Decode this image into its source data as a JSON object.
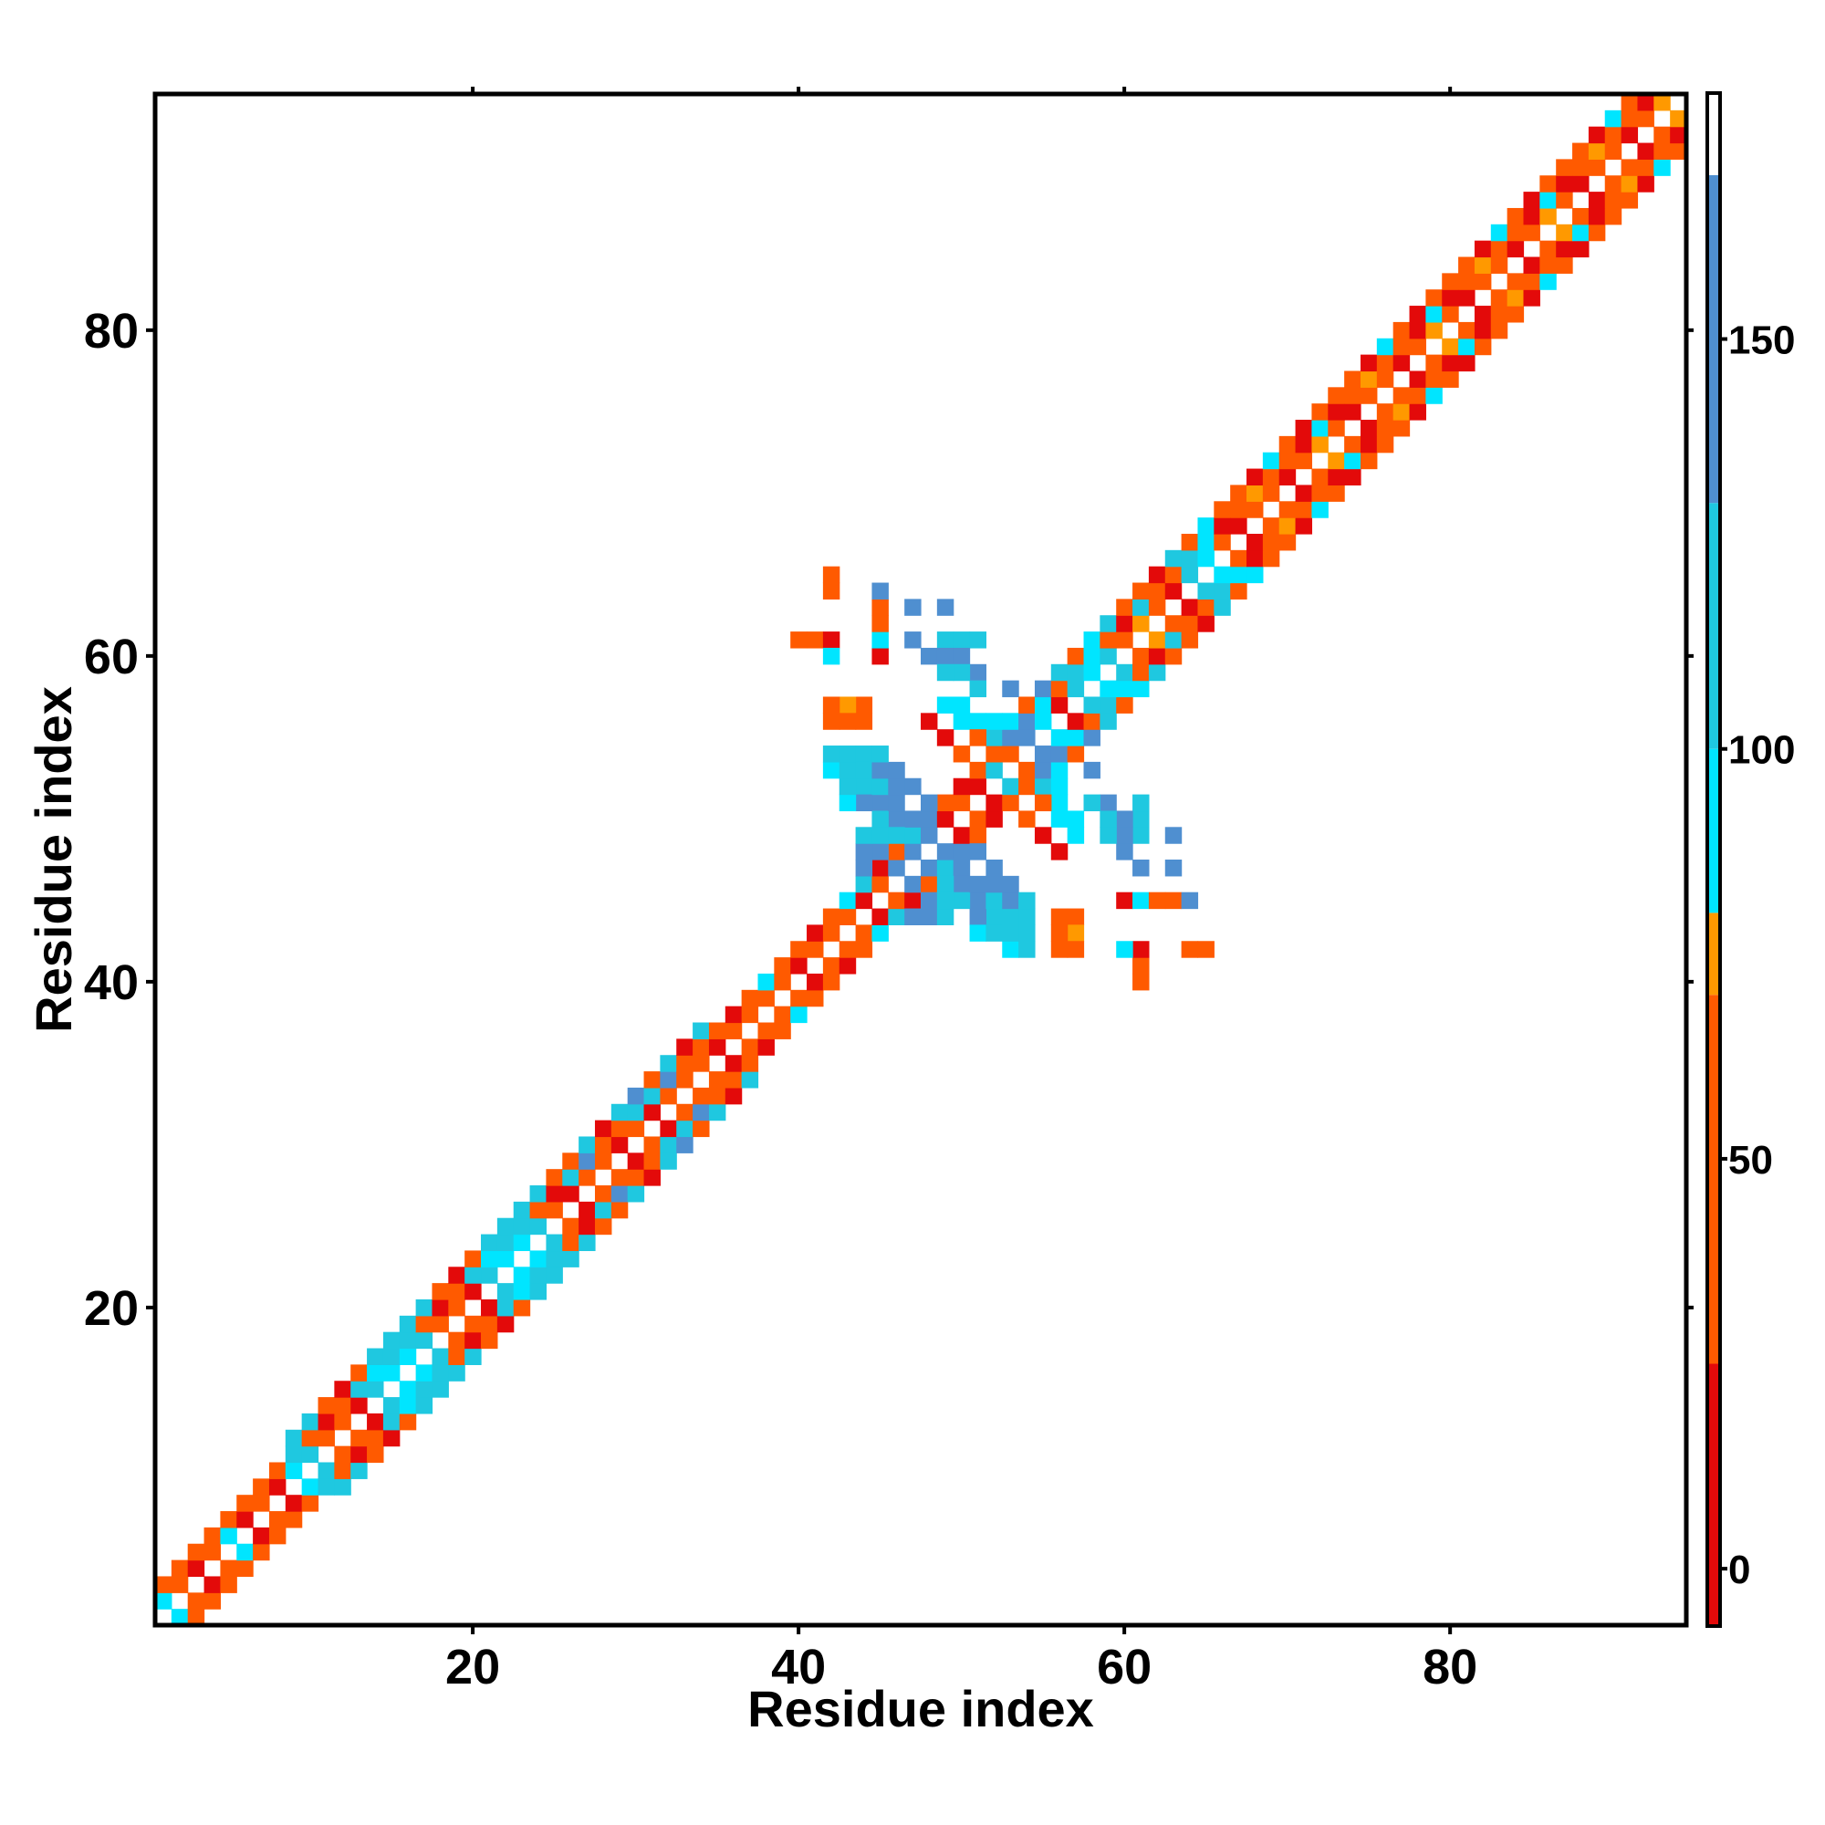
{
  "chart_data": {
    "type": "heatmap",
    "xlabel": "Residue index",
    "ylabel": "Residue index",
    "xlim": [
      1,
      94
    ],
    "ylim": [
      1,
      94
    ],
    "x_ticks": [
      20,
      40,
      60,
      80
    ],
    "y_ticks": [
      20,
      40,
      60,
      80
    ],
    "colorbar": {
      "range": [
        -7,
        180
      ],
      "ticks": [
        0,
        50,
        100,
        150
      ],
      "bands": [
        {
          "from": -7,
          "to": 25,
          "color": "#e30a0a"
        },
        {
          "from": 25,
          "to": 70,
          "color": "#ff5a00"
        },
        {
          "from": 70,
          "to": 80,
          "color": "#ff9900"
        },
        {
          "from": 80,
          "to": 100,
          "color": "#00e5ff"
        },
        {
          "from": 100,
          "to": 130,
          "color": "#1fc8e0"
        },
        {
          "from": 130,
          "to": 170,
          "color": "#4f8fd0"
        },
        {
          "from": 170,
          "to": 180,
          "color": "#ffffff"
        }
      ]
    },
    "palette": {
      "R": "#e30a0a",
      "O": "#ff5a00",
      "A": "#ff9900",
      "C": "#00e5ff",
      "T": "#1fc8e0",
      "B": "#4f8fd0"
    },
    "diagonal_bands": [
      {
        "from": 1,
        "to": 6,
        "pattern": [
          [
            "C",
            "O",
            "R",
            "O",
            "C"
          ],
          [
            "O",
            "O",
            "O"
          ]
        ]
      },
      {
        "from": 6,
        "to": 9,
        "pattern": [
          [
            "R",
            "O",
            "R"
          ],
          [
            "O",
            "O",
            "O"
          ]
        ]
      },
      {
        "from": 9,
        "to": 26,
        "pattern": [
          [
            "C",
            "T",
            "O",
            "O",
            "R",
            "T",
            "C"
          ],
          [
            "T",
            "O",
            "R",
            "O",
            "T",
            "C",
            "T"
          ],
          [
            "T",
            "T",
            "O",
            "R",
            "O",
            "T",
            "T"
          ]
        ]
      },
      {
        "from": 26,
        "to": 34,
        "pattern": [
          [
            "R",
            "O",
            "O",
            "R",
            "O"
          ],
          [
            "T",
            "B",
            "O",
            "O",
            "T"
          ],
          [
            "O",
            "T",
            "R",
            "T",
            "B"
          ]
        ]
      },
      {
        "from": 34,
        "to": 44,
        "pattern": [
          [
            "O",
            "R",
            "O",
            "O",
            "O"
          ],
          [
            "O",
            "O",
            "R",
            "O",
            "C"
          ]
        ]
      },
      {
        "from": 44,
        "to": 52,
        "pattern": [
          [
            "R",
            "O",
            "R",
            "A",
            "O"
          ],
          [
            "O",
            "R",
            "O",
            "O",
            "R"
          ]
        ]
      },
      {
        "from": 52,
        "to": 66,
        "pattern": [
          [
            "T",
            "O",
            "A",
            "O",
            "R",
            "T",
            "C"
          ],
          [
            "O",
            "R",
            "T",
            "O",
            "O",
            "T",
            "C"
          ],
          [
            "T",
            "O",
            "O",
            "R",
            "T",
            "O",
            "C"
          ]
        ]
      },
      {
        "from": 66,
        "to": 94,
        "pattern": [
          [
            "O",
            "R",
            "O",
            "O",
            "R",
            "O",
            "A"
          ],
          [
            "R",
            "O",
            "A",
            "O",
            "O",
            "R",
            "C"
          ],
          [
            "O",
            "O",
            "R",
            "C",
            "O",
            "R",
            "O"
          ]
        ]
      }
    ],
    "off_diagonal_cells": [
      [
        49,
        47,
        "B"
      ],
      [
        48,
        48,
        "B"
      ],
      [
        47,
        49,
        "B"
      ],
      [
        49,
        48,
        "B"
      ],
      [
        48,
        47,
        "T"
      ],
      [
        47,
        48,
        "B"
      ],
      [
        50,
        47,
        "T"
      ],
      [
        46,
        47,
        "B"
      ],
      [
        50,
        46,
        "B"
      ],
      [
        48,
        45,
        "B"
      ],
      [
        47,
        46,
        "B"
      ],
      [
        49,
        46,
        "T"
      ],
      [
        51,
        45,
        "T"
      ],
      [
        50,
        45,
        "T"
      ],
      [
        52,
        44,
        "T"
      ],
      [
        51,
        44,
        "T"
      ],
      [
        51,
        43,
        "C"
      ],
      [
        46,
        44,
        "T"
      ],
      [
        47,
        44,
        "B"
      ],
      [
        45,
        45,
        "T"
      ],
      [
        48,
        44,
        "B"
      ],
      [
        49,
        44,
        "T"
      ],
      [
        52,
        43,
        "T"
      ],
      [
        53,
        42,
        "C"
      ],
      [
        53,
        43,
        "O"
      ],
      [
        54,
        43,
        "O"
      ],
      [
        54,
        44,
        "O"
      ],
      [
        57,
        44,
        "O"
      ],
      [
        57,
        43,
        "O"
      ],
      [
        60,
        45,
        "R"
      ],
      [
        61,
        45,
        "C"
      ],
      [
        62,
        45,
        "O"
      ],
      [
        63,
        45,
        "O"
      ],
      [
        47,
        50,
        "B"
      ],
      [
        48,
        50,
        "B"
      ],
      [
        48,
        51,
        "B"
      ],
      [
        46,
        51,
        "B"
      ],
      [
        45,
        52,
        "T"
      ],
      [
        44,
        52,
        "T"
      ],
      [
        43,
        53,
        "T"
      ],
      [
        44,
        53,
        "T"
      ],
      [
        45,
        53,
        "B"
      ],
      [
        46,
        52,
        "B"
      ],
      [
        47,
        52,
        "B"
      ],
      [
        46,
        53,
        "B"
      ],
      [
        47,
        49,
        "T"
      ],
      [
        46,
        50,
        "B"
      ],
      [
        45,
        54,
        "T"
      ],
      [
        44,
        54,
        "T"
      ],
      [
        42,
        54,
        "T"
      ],
      [
        43,
        54,
        "T"
      ],
      [
        45,
        49,
        "T"
      ],
      [
        44,
        51,
        "B"
      ],
      [
        45,
        51,
        "B"
      ],
      [
        46,
        49,
        "T"
      ],
      [
        42,
        56,
        "O"
      ],
      [
        43,
        56,
        "O"
      ],
      [
        43,
        57,
        "A"
      ],
      [
        42,
        57,
        "O"
      ],
      [
        44,
        56,
        "O"
      ],
      [
        41,
        61,
        "O"
      ],
      [
        40,
        61,
        "O"
      ],
      [
        42,
        61,
        "R"
      ],
      [
        42,
        60,
        "C"
      ],
      [
        42,
        65,
        "O"
      ],
      [
        42,
        64,
        "O"
      ],
      [
        45,
        64,
        "B"
      ],
      [
        47,
        63,
        "B"
      ],
      [
        49,
        63,
        "B"
      ],
      [
        49,
        61,
        "T"
      ],
      [
        50,
        61,
        "T"
      ],
      [
        51,
        61,
        "T"
      ],
      [
        47,
        61,
        "B"
      ],
      [
        48,
        60,
        "B"
      ],
      [
        49,
        60,
        "B"
      ],
      [
        50,
        60,
        "B"
      ],
      [
        51,
        59,
        "T"
      ],
      [
        50,
        59,
        "T"
      ],
      [
        49,
        59,
        "T"
      ],
      [
        51,
        58,
        "T"
      ],
      [
        50,
        57,
        "C"
      ],
      [
        49,
        57,
        "C"
      ],
      [
        50,
        56,
        "C"
      ],
      [
        51,
        56,
        "C"
      ],
      [
        52,
        56,
        "C"
      ],
      [
        53,
        56,
        "C"
      ],
      [
        54,
        55,
        "B"
      ],
      [
        55,
        55,
        "B"
      ],
      [
        56,
        55,
        "C"
      ],
      [
        57,
        55,
        "C"
      ],
      [
        55,
        54,
        "B"
      ],
      [
        56,
        54,
        "B"
      ],
      [
        55,
        53,
        "B"
      ],
      [
        58,
        55,
        "B"
      ],
      [
        58,
        53,
        "B"
      ],
      [
        59,
        51,
        "B"
      ],
      [
        48,
        56,
        "R"
      ],
      [
        49,
        55,
        "R"
      ],
      [
        50,
        54,
        "O"
      ],
      [
        51,
        55,
        "O"
      ]
    ]
  }
}
